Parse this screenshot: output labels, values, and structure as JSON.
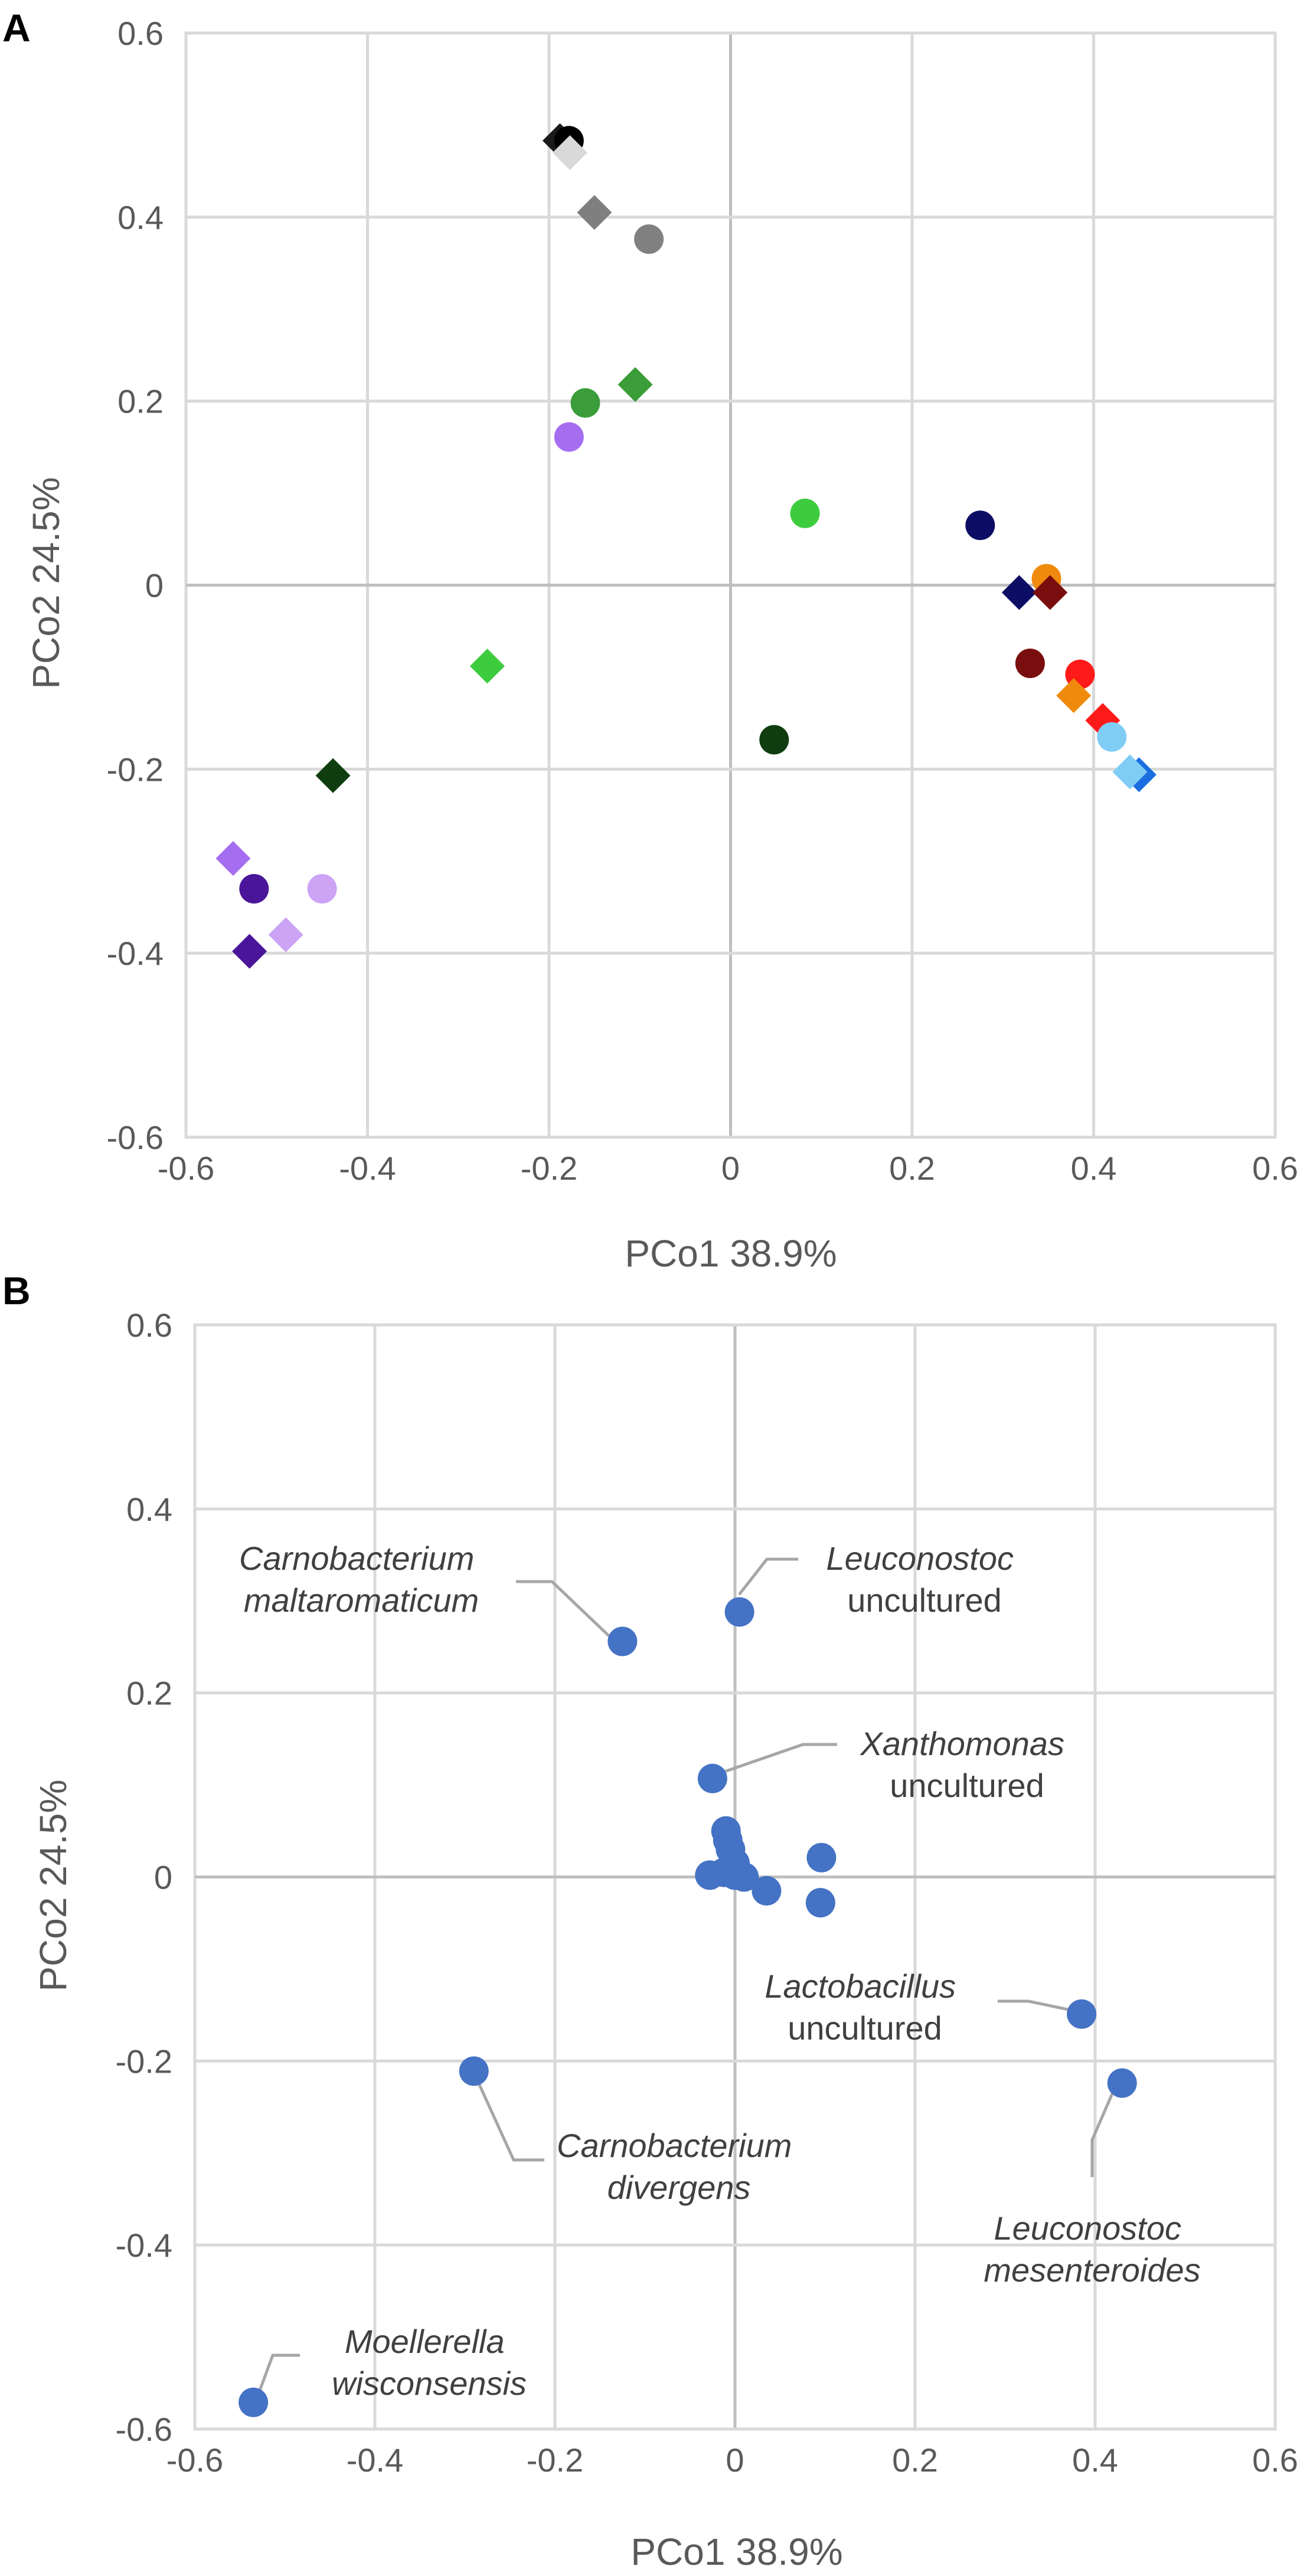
{
  "chart_data": [
    {
      "type": "scatter",
      "panel_label": "A",
      "title": "",
      "xlabel": "PCo1 38.9%",
      "ylabel": "PCo2 24.5%",
      "xlim": [
        -0.6,
        0.6
      ],
      "ylim": [
        -0.6,
        0.6
      ],
      "x_ticks": [
        "-0.6",
        "-0.4",
        "-0.2",
        "0",
        "0.2",
        "0.4",
        "0.6"
      ],
      "y_ticks": [
        "0.6",
        "0.4",
        "0.2",
        "0",
        "-0.2",
        "-0.4",
        "-0.6"
      ],
      "grid": true,
      "points": [
        {
          "x": -0.188,
          "y": 0.483,
          "shape": "diamond",
          "color": "#1a1a1a"
        },
        {
          "x": -0.178,
          "y": 0.483,
          "shape": "circle",
          "color": "#000000"
        },
        {
          "x": -0.177,
          "y": 0.47,
          "shape": "diamond",
          "color": "#d9d9d9"
        },
        {
          "x": -0.15,
          "y": 0.405,
          "shape": "diamond",
          "color": "#7f7f7f"
        },
        {
          "x": -0.09,
          "y": 0.376,
          "shape": "circle",
          "color": "#808080"
        },
        {
          "x": -0.105,
          "y": 0.218,
          "shape": "diamond",
          "color": "#3a9d3a"
        },
        {
          "x": -0.16,
          "y": 0.198,
          "shape": "circle",
          "color": "#3a9d3a"
        },
        {
          "x": -0.178,
          "y": 0.161,
          "shape": "circle",
          "color": "#a56ef0"
        },
        {
          "x": 0.082,
          "y": 0.078,
          "shape": "circle",
          "color": "#3dcc3d"
        },
        {
          "x": 0.275,
          "y": 0.065,
          "shape": "circle",
          "color": "#0d0d66"
        },
        {
          "x": 0.318,
          "y": -0.008,
          "shape": "diamond",
          "color": "#0d0d66"
        },
        {
          "x": 0.348,
          "y": 0.007,
          "shape": "circle",
          "color": "#f08a0c"
        },
        {
          "x": 0.352,
          "y": -0.008,
          "shape": "diamond",
          "color": "#7a0d0d"
        },
        {
          "x": -0.268,
          "y": -0.088,
          "shape": "diamond",
          "color": "#3dcc3d"
        },
        {
          "x": 0.33,
          "y": -0.085,
          "shape": "circle",
          "color": "#7a0d0d"
        },
        {
          "x": 0.385,
          "y": -0.097,
          "shape": "circle",
          "color": "#ff1a1a"
        },
        {
          "x": 0.378,
          "y": -0.12,
          "shape": "diamond",
          "color": "#f08a0c"
        },
        {
          "x": 0.41,
          "y": -0.147,
          "shape": "diamond",
          "color": "#ff1a1a"
        },
        {
          "x": 0.42,
          "y": -0.165,
          "shape": "circle",
          "color": "#7fcdf5"
        },
        {
          "x": 0.048,
          "y": -0.168,
          "shape": "circle",
          "color": "#0f3d0f"
        },
        {
          "x": 0.45,
          "y": -0.206,
          "shape": "diamond",
          "color": "#1a6ee0"
        },
        {
          "x": 0.44,
          "y": -0.203,
          "shape": "diamond",
          "color": "#7fcdf5"
        },
        {
          "x": -0.438,
          "y": -0.207,
          "shape": "diamond",
          "color": "#0f3d0f"
        },
        {
          "x": -0.548,
          "y": -0.297,
          "shape": "diamond",
          "color": "#a56ef0"
        },
        {
          "x": -0.525,
          "y": -0.33,
          "shape": "circle",
          "color": "#4a1599"
        },
        {
          "x": -0.45,
          "y": -0.33,
          "shape": "circle",
          "color": "#cca3f5"
        },
        {
          "x": -0.49,
          "y": -0.38,
          "shape": "diamond",
          "color": "#cca3f5"
        },
        {
          "x": -0.53,
          "y": -0.398,
          "shape": "diamond",
          "color": "#4a1599"
        }
      ]
    },
    {
      "type": "scatter",
      "panel_label": "B",
      "title": "",
      "xlabel": "PCo1 38.9%",
      "ylabel": "PCo2 24.5%",
      "xlim": [
        -0.6,
        0.6
      ],
      "ylim": [
        -0.6,
        0.6
      ],
      "x_ticks": [
        "-0.6",
        "-0.4",
        "-0.2",
        "0",
        "0.2",
        "0.4",
        "0.6"
      ],
      "y_ticks": [
        "0.6",
        "0.4",
        "0.2",
        "0",
        "-0.2",
        "-0.4",
        "-0.6"
      ],
      "grid": true,
      "point_color": "#4472c4",
      "points": [
        {
          "x": -0.125,
          "y": 0.256
        },
        {
          "x": 0.005,
          "y": 0.288
        },
        {
          "x": -0.025,
          "y": 0.107
        },
        {
          "x": -0.01,
          "y": 0.05
        },
        {
          "x": -0.008,
          "y": 0.04
        },
        {
          "x": -0.005,
          "y": 0.03
        },
        {
          "x": 0.0,
          "y": 0.015
        },
        {
          "x": -0.012,
          "y": 0.005
        },
        {
          "x": -0.028,
          "y": 0.002
        },
        {
          "x": 0.0,
          "y": 0.002
        },
        {
          "x": 0.01,
          "y": 0.0
        },
        {
          "x": 0.035,
          "y": -0.015
        },
        {
          "x": 0.096,
          "y": 0.021
        },
        {
          "x": 0.095,
          "y": -0.028
        },
        {
          "x": 0.385,
          "y": -0.149
        },
        {
          "x": 0.43,
          "y": -0.224
        },
        {
          "x": -0.29,
          "y": -0.211
        },
        {
          "x": -0.535,
          "y": -0.571
        }
      ],
      "annotations": [
        {
          "lines": [
            "Carnobacterium",
            "maltaromaticum"
          ],
          "styles": [
            "italic",
            "italic"
          ],
          "anchor": "middle",
          "target": [
            -0.125,
            0.256
          ]
        },
        {
          "lines": [
            "Leuconostoc",
            "uncultured"
          ],
          "styles": [
            "italic",
            "normal"
          ],
          "anchor": "middle",
          "target": [
            0.005,
            0.288
          ]
        },
        {
          "lines": [
            "Xanthomonas",
            "uncultured"
          ],
          "styles": [
            "italic",
            "normal"
          ],
          "anchor": "middle",
          "target": [
            -0.025,
            0.107
          ]
        },
        {
          "lines": [
            "Lactobacillus",
            "uncultured"
          ],
          "styles": [
            "italic",
            "normal"
          ],
          "anchor": "middle",
          "target": [
            0.385,
            -0.149
          ]
        },
        {
          "lines": [
            "Carnobacterium",
            "divergens"
          ],
          "styles": [
            "italic",
            "italic"
          ],
          "anchor": "middle",
          "target": [
            -0.29,
            -0.211
          ]
        },
        {
          "lines": [
            "Leuconostoc",
            "mesenteroides"
          ],
          "styles": [
            "italic",
            "italic"
          ],
          "anchor": "middle",
          "target": [
            0.43,
            -0.224
          ]
        },
        {
          "lines": [
            "Moellerella",
            "wisconsensis"
          ],
          "styles": [
            "italic",
            "italic"
          ],
          "anchor": "middle",
          "target": [
            -0.535,
            -0.571
          ]
        }
      ]
    }
  ]
}
